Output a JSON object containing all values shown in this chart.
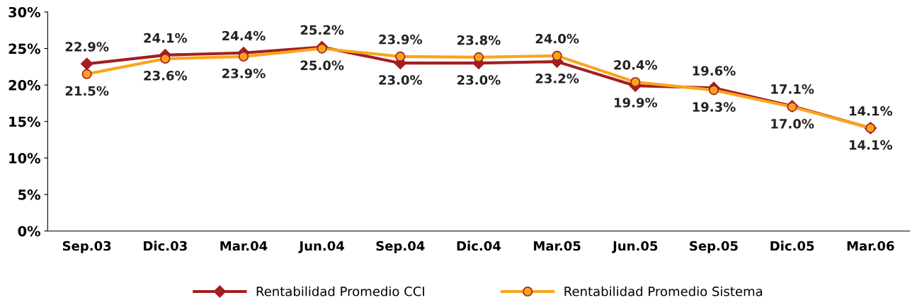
{
  "chart_data": {
    "type": "line",
    "categories": [
      "Sep.03",
      "Dic.03",
      "Mar.04",
      "Jun.04",
      "Sep.04",
      "Dic.04",
      "Mar.05",
      "Jun.05",
      "Sep.05",
      "Dic.05",
      "Mar.06"
    ],
    "series": [
      {
        "name": "Rentabilidad Promedio CCI",
        "color": "#a31e22",
        "marker": "diamond",
        "values": [
          22.9,
          24.1,
          24.4,
          25.2,
          23.0,
          23.0,
          23.2,
          19.9,
          19.6,
          17.1,
          14.1
        ],
        "value_labels": [
          "22.9%",
          "24.1%",
          "24.4%",
          "25.2%",
          "23.0%",
          "23.0%",
          "23.2%",
          "19.9%",
          "19.6%",
          "17.1%",
          "14.1%"
        ]
      },
      {
        "name": "Rentabilidad Promedio Sistema",
        "color": "#f9a51b",
        "marker": "circle",
        "values": [
          21.5,
          23.6,
          23.9,
          25.0,
          23.9,
          23.8,
          24.0,
          20.4,
          19.3,
          17.0,
          14.1
        ],
        "value_labels": [
          "21.5%",
          "23.6%",
          "23.9%",
          "25.0%",
          "23.9%",
          "23.8%",
          "24.0%",
          "20.4%",
          "19.3%",
          "17.0%",
          "14.1%"
        ]
      }
    ],
    "ylim": [
      0,
      30
    ],
    "yticks": [
      {
        "value": 0,
        "label": "0%"
      },
      {
        "value": 5,
        "label": "5%"
      },
      {
        "value": 10,
        "label": "10%"
      },
      {
        "value": 15,
        "label": "15%"
      },
      {
        "value": 20,
        "label": "20%"
      },
      {
        "value": 25,
        "label": "25%"
      },
      {
        "value": 30,
        "label": "30%"
      }
    ],
    "grid": false,
    "legend": "bottom",
    "line_style": "solid"
  }
}
